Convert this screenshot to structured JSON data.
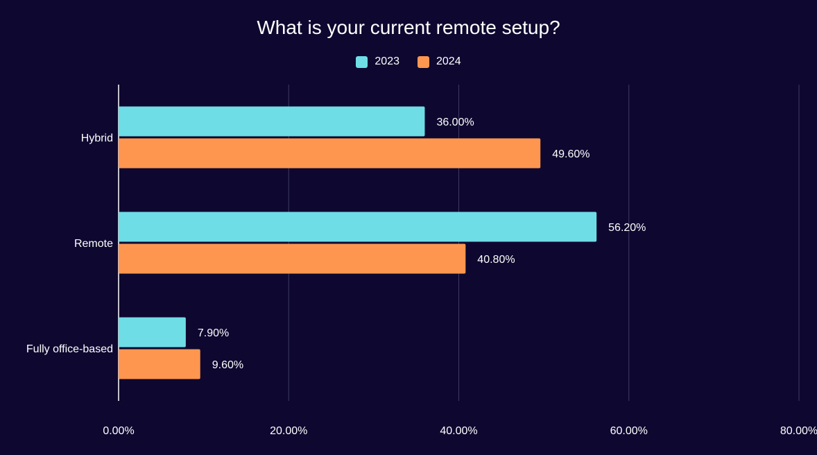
{
  "chart_data": {
    "type": "bar",
    "orientation": "horizontal",
    "title": "What is your current remote setup?",
    "categories": [
      "Hybrid",
      "Remote",
      "Fully office-based"
    ],
    "series": [
      {
        "name": "2023",
        "color": "#6fdde6",
        "values": [
          36.0,
          56.2,
          7.9
        ],
        "labels": [
          "36.00%",
          "56.20%",
          "7.90%"
        ]
      },
      {
        "name": "2024",
        "color": "#ff9650",
        "values": [
          49.6,
          40.8,
          9.6
        ],
        "labels": [
          "49.60%",
          "40.80%",
          "9.60%"
        ]
      }
    ],
    "xlim": [
      0,
      80
    ],
    "xticks": [
      0,
      20,
      40,
      60,
      80
    ],
    "xtick_labels": [
      "0.00%",
      "20.00%",
      "40.00%",
      "60.00%",
      "80.00%"
    ],
    "grid": true,
    "legend_position": "top-center"
  }
}
